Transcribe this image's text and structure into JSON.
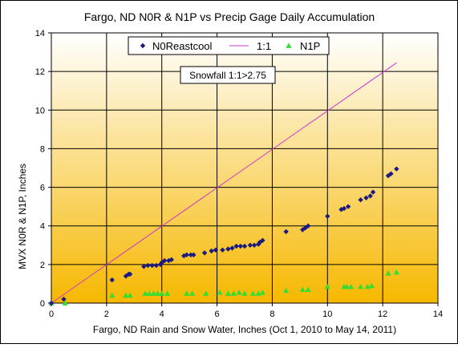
{
  "chart_data": {
    "type": "scatter",
    "title": "Fargo, ND N0R & N1P vs Precip Gage Daily Accumulation",
    "xlabel": "Fargo, ND Rain and Snow Water, Inches (Oct 1, 2010 to May 14, 2011)",
    "ylabel": "MVX N0R & N1P, Inches",
    "xlim": [
      0,
      14
    ],
    "ylim": [
      0,
      14
    ],
    "x_ticks": [
      0,
      2,
      4,
      6,
      8,
      10,
      12,
      14
    ],
    "y_ticks": [
      0,
      2,
      4,
      6,
      8,
      10,
      12,
      14
    ],
    "grid": true,
    "background_gradient": [
      "#ffffff",
      "#f6b800"
    ],
    "annotation": "Snowfall 1:1>2.75",
    "legend_position": "top-center",
    "series": [
      {
        "name": "N0Reastcool",
        "marker": "diamond",
        "color": "#1a1a80",
        "points": [
          [
            0.0,
            0.0
          ],
          [
            0.45,
            0.2
          ],
          [
            2.2,
            1.2
          ],
          [
            2.7,
            1.4
          ],
          [
            2.8,
            1.5
          ],
          [
            2.85,
            1.5
          ],
          [
            3.35,
            1.9
          ],
          [
            3.5,
            1.95
          ],
          [
            3.65,
            1.95
          ],
          [
            3.8,
            1.95
          ],
          [
            3.95,
            2.0
          ],
          [
            4.0,
            2.1
          ],
          [
            4.1,
            2.2
          ],
          [
            4.25,
            2.2
          ],
          [
            4.35,
            2.25
          ],
          [
            4.8,
            2.45
          ],
          [
            4.9,
            2.5
          ],
          [
            5.05,
            2.5
          ],
          [
            5.15,
            2.5
          ],
          [
            5.55,
            2.6
          ],
          [
            5.8,
            2.7
          ],
          [
            5.95,
            2.75
          ],
          [
            6.2,
            2.75
          ],
          [
            6.4,
            2.8
          ],
          [
            6.55,
            2.85
          ],
          [
            6.7,
            2.95
          ],
          [
            6.85,
            2.95
          ],
          [
            7.0,
            2.95
          ],
          [
            7.2,
            3.0
          ],
          [
            7.35,
            3.0
          ],
          [
            7.5,
            3.05
          ],
          [
            7.55,
            3.15
          ],
          [
            7.65,
            3.25
          ],
          [
            8.5,
            3.7
          ],
          [
            9.1,
            3.8
          ],
          [
            9.2,
            3.9
          ],
          [
            9.3,
            4.0
          ],
          [
            10.0,
            4.5
          ],
          [
            10.5,
            4.85
          ],
          [
            10.6,
            4.9
          ],
          [
            10.75,
            5.0
          ],
          [
            11.2,
            5.35
          ],
          [
            11.4,
            5.45
          ],
          [
            11.55,
            5.55
          ],
          [
            11.65,
            5.75
          ],
          [
            12.2,
            6.6
          ],
          [
            12.3,
            6.7
          ],
          [
            12.5,
            6.95
          ]
        ]
      },
      {
        "name": "1:1",
        "marker": "line",
        "color": "#cc33cc",
        "points": [
          [
            0,
            0
          ],
          [
            12.5,
            12.45
          ]
        ]
      },
      {
        "name": "N1P",
        "marker": "triangle",
        "color": "#33dd33",
        "points": [
          [
            0.0,
            0.0
          ],
          [
            0.5,
            0.0
          ],
          [
            2.2,
            0.4
          ],
          [
            2.7,
            0.4
          ],
          [
            2.85,
            0.4
          ],
          [
            3.4,
            0.5
          ],
          [
            3.55,
            0.5
          ],
          [
            3.7,
            0.5
          ],
          [
            3.85,
            0.5
          ],
          [
            4.0,
            0.5
          ],
          [
            4.2,
            0.5
          ],
          [
            4.9,
            0.5
          ],
          [
            5.1,
            0.5
          ],
          [
            5.6,
            0.5
          ],
          [
            6.1,
            0.55
          ],
          [
            6.4,
            0.5
          ],
          [
            6.6,
            0.5
          ],
          [
            6.8,
            0.55
          ],
          [
            7.0,
            0.5
          ],
          [
            7.3,
            0.5
          ],
          [
            7.5,
            0.5
          ],
          [
            7.65,
            0.55
          ],
          [
            8.5,
            0.65
          ],
          [
            9.1,
            0.7
          ],
          [
            9.3,
            0.7
          ],
          [
            10.0,
            0.85
          ],
          [
            10.6,
            0.85
          ],
          [
            10.7,
            0.85
          ],
          [
            10.85,
            0.85
          ],
          [
            11.2,
            0.85
          ],
          [
            11.45,
            0.85
          ],
          [
            11.6,
            0.9
          ],
          [
            12.2,
            1.55
          ],
          [
            12.5,
            1.6
          ]
        ]
      }
    ]
  }
}
